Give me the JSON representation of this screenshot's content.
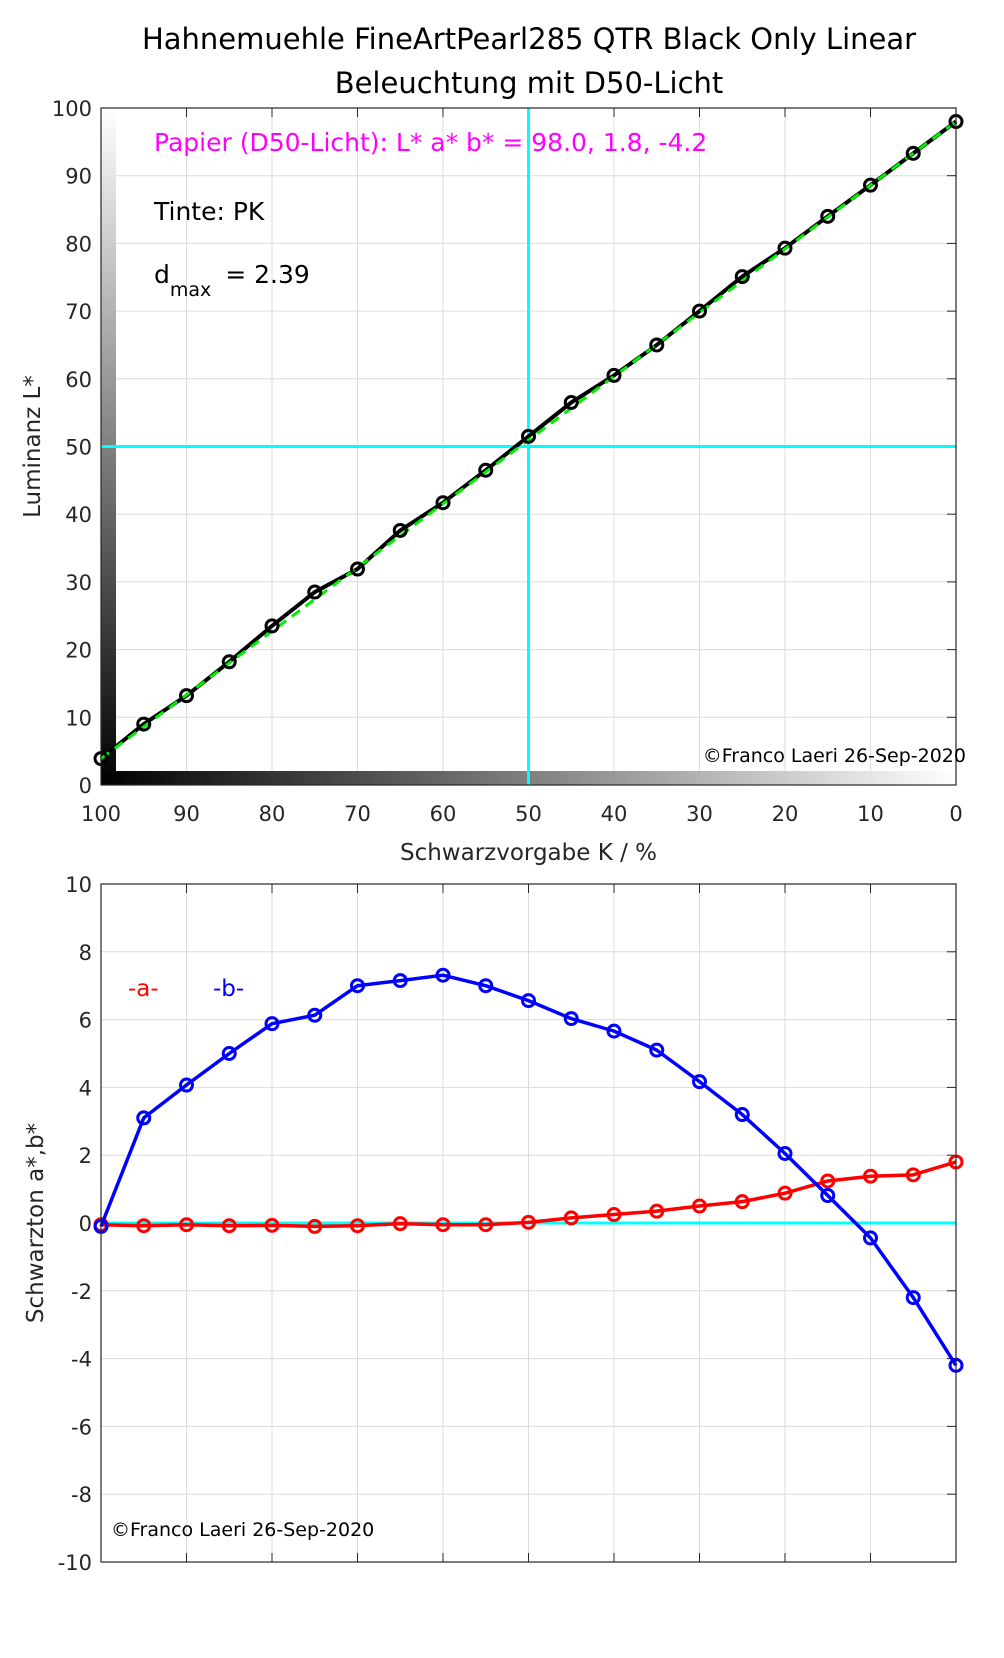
{
  "title": [
    "Hahnemuehle FineArtPearl285 QTR Black Only Linear",
    "Beleuchtung mit D50-Licht"
  ],
  "colors": {
    "L": "#000000",
    "fit": "#00ee00",
    "a": "#ff0000",
    "b": "#0000ff",
    "guide": "#00ffff",
    "paper": "#ff00ff"
  },
  "chart_data": [
    {
      "type": "line",
      "xlabel": "Schwarzvorgabe  K / %",
      "ylabel": "Luminanz  L*",
      "xlim": [
        100,
        0
      ],
      "ylim": [
        0,
        100
      ],
      "xticks": [
        100,
        90,
        80,
        70,
        60,
        50,
        40,
        30,
        20,
        10,
        0
      ],
      "yticks": [
        0,
        10,
        20,
        30,
        40,
        50,
        60,
        70,
        80,
        90,
        100
      ],
      "grid": true,
      "x": [
        100,
        95,
        90,
        85,
        80,
        75,
        70,
        65,
        60,
        55,
        50,
        45,
        40,
        35,
        30,
        25,
        20,
        15,
        10,
        5,
        0
      ],
      "series": [
        {
          "name": "L*",
          "values": [
            3.9,
            9.0,
            13.2,
            18.2,
            23.5,
            28.5,
            31.9,
            37.6,
            41.7,
            46.5,
            51.5,
            56.5,
            60.5,
            65.0,
            70.0,
            75.1,
            79.3,
            84.0,
            88.6,
            93.3,
            98.0
          ]
        },
        {
          "name": "linear",
          "x": [
            100,
            0
          ],
          "values": [
            3.9,
            98.0
          ]
        }
      ],
      "guides": {
        "x": 50,
        "y": 50
      },
      "annotations": {
        "paper": "Papier (D50-Licht): L* a* b* = 98.0, 1.8, -4.2",
        "ink": "Tinte:  PK",
        "dmax_d": "d",
        "dmax_sub": "max",
        "dmax_value": " = 2.39",
        "copyright": "©Franco Laeri  26-Sep-2020"
      }
    },
    {
      "type": "line",
      "xlabel": "",
      "ylabel": "Schwarzton a*,b*",
      "xlim": [
        100,
        0
      ],
      "ylim": [
        -10,
        10
      ],
      "yticks": [
        -10,
        -8,
        -6,
        -4,
        -2,
        0,
        2,
        4,
        6,
        8,
        10
      ],
      "grid": true,
      "x": [
        100,
        95,
        90,
        85,
        80,
        75,
        70,
        65,
        60,
        55,
        50,
        45,
        40,
        35,
        30,
        25,
        20,
        15,
        10,
        5,
        0
      ],
      "series": [
        {
          "name": "-a-",
          "values": [
            -0.05,
            -0.08,
            -0.05,
            -0.08,
            -0.07,
            -0.1,
            -0.08,
            -0.02,
            -0.05,
            -0.05,
            0.02,
            0.15,
            0.25,
            0.35,
            0.5,
            0.63,
            0.88,
            1.24,
            1.38,
            1.42,
            1.8
          ]
        },
        {
          "name": "-b-",
          "values": [
            -0.1,
            3.1,
            4.07,
            5.0,
            5.88,
            6.13,
            7.0,
            7.15,
            7.31,
            7.0,
            6.56,
            6.03,
            5.66,
            5.1,
            4.17,
            3.2,
            2.05,
            0.81,
            -0.44,
            -2.2,
            -4.2
          ]
        }
      ],
      "guides": {
        "y": 0
      },
      "legend": [
        "-a-",
        "-b-"
      ],
      "annotations": {
        "copyright": "©Franco Laeri  26-Sep-2020"
      }
    }
  ]
}
